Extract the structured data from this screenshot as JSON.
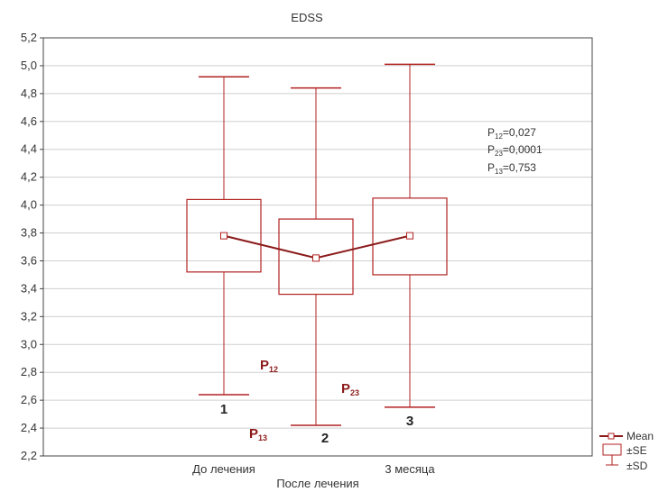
{
  "colors": {
    "series": "#b22222",
    "mean_line": "#8b1a1a",
    "grid": "#cfcfcf",
    "frame": "#444444",
    "text": "#333333"
  },
  "chart_data": {
    "type": "box",
    "title": "EDSS",
    "xlabel": "После лечения",
    "ylabel": "",
    "ylim": [
      2.2,
      5.2
    ],
    "yticks": [
      "5,2",
      "5,0",
      "4,8",
      "4,6",
      "4,4",
      "4,2",
      "4,0",
      "3,8",
      "3,6",
      "3,4",
      "3,2",
      "3,0",
      "2,8",
      "2,6",
      "2,4",
      "2,2"
    ],
    "grid": true,
    "categories": [
      "До лечения",
      "После лечения",
      "3 месяца"
    ],
    "visible_x_labels": [
      "До лечения",
      "",
      "3 месяца"
    ],
    "group_numbers": [
      "1",
      "2",
      "3"
    ],
    "mean": [
      3.78,
      3.62,
      3.78
    ],
    "se_low": [
      3.52,
      3.36,
      3.5
    ],
    "se_high": [
      4.04,
      3.9,
      4.05
    ],
    "sd_low": [
      2.64,
      2.42,
      2.55
    ],
    "sd_high": [
      4.92,
      4.84,
      5.01
    ],
    "stats_text": [
      {
        "p": "P",
        "sub": "12",
        "rest": "=0,027"
      },
      {
        "p": "P",
        "sub": "23",
        "rest": "=0,0001"
      },
      {
        "p": "P",
        "sub": "13",
        "rest": "=0,753"
      }
    ],
    "comparison_markers": [
      {
        "p": "P",
        "sub": "12"
      },
      {
        "p": "P",
        "sub": "23"
      },
      {
        "p": "P",
        "sub": "13"
      }
    ],
    "legend": {
      "placement": "bottom-right",
      "items": [
        "Mean",
        "±SE",
        "±SD"
      ]
    }
  }
}
